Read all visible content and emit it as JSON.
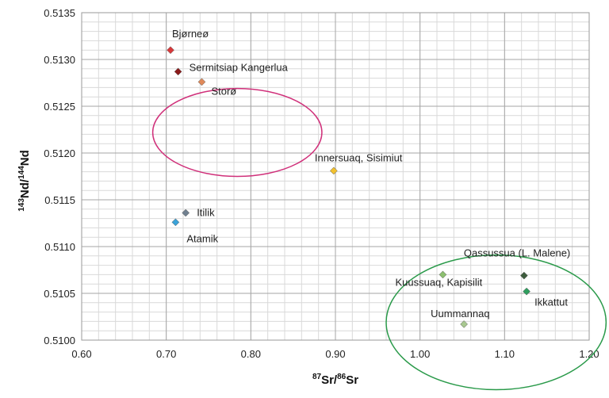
{
  "chart_data": {
    "type": "scatter",
    "title": "",
    "xlabel": {
      "sup": "87",
      "main": "Sr/",
      "sup2": "86",
      "main2": "Sr"
    },
    "ylabel": {
      "sup": "143",
      "main": "Nd/",
      "sup2": "144",
      "main2": "Nd"
    },
    "xlim": [
      0.6,
      1.2
    ],
    "ylim": [
      0.51,
      0.5135
    ],
    "x_ticks": [
      0.6,
      0.7,
      0.8,
      0.9,
      1.0,
      1.1,
      1.2
    ],
    "x_tick_labels": [
      "0.60",
      "0.70",
      "0.80",
      "0.90",
      "1.00",
      "1.10",
      "1.20"
    ],
    "y_ticks": [
      0.51,
      0.5105,
      0.511,
      0.5115,
      0.512,
      0.5125,
      0.513,
      0.5135
    ],
    "y_tick_labels": [
      "0.5100",
      "0.5105",
      "0.5110",
      "0.5115",
      "0.5120",
      "0.5125",
      "0.5130",
      "0.5135"
    ],
    "grid": true,
    "points": [
      {
        "label": "Bjørneø",
        "x": 0.705,
        "y": 0.5131,
        "color": "#d9383a"
      },
      {
        "label": "Sermitsiap Kangerlua",
        "x": 0.714,
        "y": 0.51287,
        "color": "#8b1a1a"
      },
      {
        "label": "Storø",
        "x": 0.742,
        "y": 0.51276,
        "color": "#e08a5a"
      },
      {
        "label": "Innersuaq, Sisimiut",
        "x": 0.898,
        "y": 0.51181,
        "color": "#f2c12e"
      },
      {
        "label": "Itilik",
        "x": 0.723,
        "y": 0.51136,
        "color": "#708090"
      },
      {
        "label": "Atamik",
        "x": 0.711,
        "y": 0.51126,
        "color": "#3ba3d9"
      },
      {
        "label": "Qassussua (L. Malene)",
        "x": 1.123,
        "y": 0.51069,
        "color": "#3d5c3d"
      },
      {
        "label": "Kuussuaq, Kapisilit",
        "x": 1.027,
        "y": 0.5107,
        "color": "#8dc070"
      },
      {
        "label": "Ikkattut",
        "x": 1.126,
        "y": 0.51052,
        "color": "#2e9e5e"
      },
      {
        "label": "Uummannaq",
        "x": 1.052,
        "y": 0.51017,
        "color": "#a8c890"
      }
    ],
    "ellipses": [
      {
        "cx": 0.784,
        "cy": 0.51222,
        "rx": 0.1,
        "ry": 0.00047,
        "color": "#d0307a"
      },
      {
        "cx": 1.09,
        "cy": 0.51019,
        "rx": 0.13,
        "ry": 0.00072,
        "color": "#2a9a4a"
      }
    ]
  }
}
